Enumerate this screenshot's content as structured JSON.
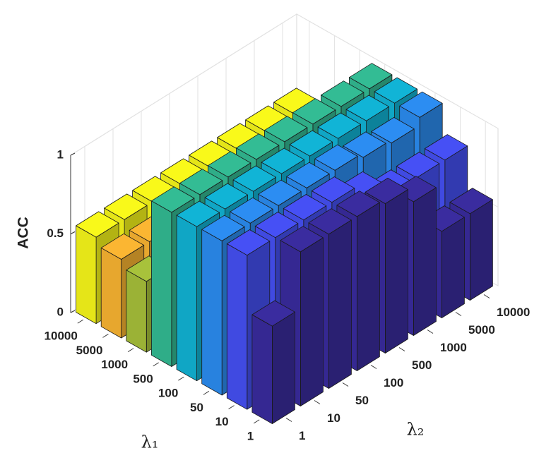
{
  "chart_data": {
    "type": "bar3",
    "xlabel": "λ₁",
    "ylabel": "λ₂",
    "zlabel": "ACC",
    "categories": [
      "1",
      "10",
      "50",
      "100",
      "500",
      "1000",
      "5000",
      "10000"
    ],
    "series": [
      {
        "name": "10000",
        "color": "#f9f91a",
        "values": [
          0.55,
          0.55,
          0.55,
          0.55,
          0.55,
          0.55,
          0.55,
          0.55
        ]
      },
      {
        "name": "5000",
        "color": "#fbb632",
        "values": [
          0.5,
          0.5,
          0.5,
          0.5,
          0.5,
          0.5,
          0.5,
          0.5
        ]
      },
      {
        "name": "1000",
        "color": "#a8c23b",
        "values": [
          0.45,
          0.45,
          0.45,
          0.45,
          0.45,
          0.45,
          0.45,
          0.45
        ]
      },
      {
        "name": "500",
        "color": "#33bc94",
        "values": [
          0.98,
          0.98,
          0.98,
          0.98,
          0.98,
          0.98,
          0.98,
          0.98
        ]
      },
      {
        "name": "100",
        "color": "#11b4d6",
        "values": [
          0.98,
          0.98,
          0.98,
          0.98,
          0.98,
          0.98,
          0.98,
          0.98
        ]
      },
      {
        "name": "50",
        "color": "#2c8df2",
        "values": [
          0.98,
          0.98,
          0.98,
          0.98,
          0.98,
          0.95,
          0.93,
          0.98
        ]
      },
      {
        "name": "10",
        "color": "#4650f5",
        "values": [
          0.98,
          0.98,
          0.98,
          0.98,
          0.9,
          0.8,
          0.8,
          0.8
        ]
      },
      {
        "name": "1",
        "color": "#3a2c9f",
        "values": [
          0.62,
          0.98,
          0.98,
          0.98,
          0.95,
          0.85,
          0.55,
          0.55
        ]
      }
    ],
    "zlim": [
      0,
      1
    ],
    "zticks": [
      0,
      0.5,
      1
    ],
    "grid": true
  }
}
